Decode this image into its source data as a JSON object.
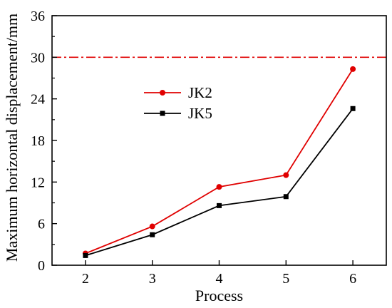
{
  "chart_data": {
    "type": "line",
    "xlabel": "Process",
    "ylabel": "Maximum horizontal displacement/mm",
    "x": [
      2,
      3,
      4,
      5,
      6
    ],
    "xlim": [
      1.5,
      6.5
    ],
    "ylim": [
      0,
      36
    ],
    "x_ticks": [
      2,
      3,
      4,
      5,
      6
    ],
    "y_ticks": [
      0,
      6,
      12,
      18,
      24,
      30,
      36
    ],
    "grid": false,
    "legend": "center-left",
    "reference_line": {
      "y": 30,
      "color": "#e00000",
      "style": "dash-dot"
    },
    "series": [
      {
        "name": "JK2",
        "color": "#e00000",
        "marker": "circle",
        "values": [
          1.7,
          5.6,
          11.3,
          13.0,
          28.3
        ]
      },
      {
        "name": "JK5",
        "color": "#000000",
        "marker": "square",
        "values": [
          1.4,
          4.4,
          8.6,
          9.9,
          22.6
        ]
      }
    ]
  }
}
